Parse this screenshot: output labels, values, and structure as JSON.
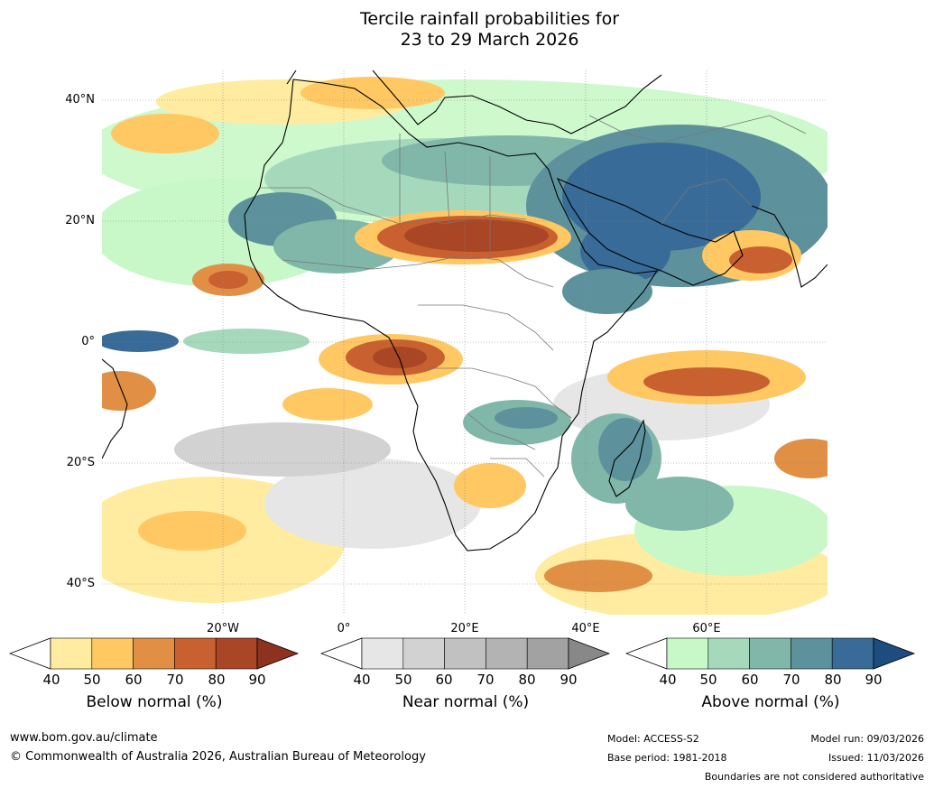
{
  "title": {
    "line1": "Tercile rainfall probabilities for",
    "line2": "23 to 29 March 2026"
  },
  "map": {
    "lat_labels": [
      "40°N",
      "20°N",
      "0°",
      "20°S",
      "40°S"
    ],
    "lon_labels": [
      "20°W",
      "0°",
      "20°E",
      "40°E",
      "60°E"
    ],
    "region": "Africa and surrounding oceans",
    "colors": {
      "below": [
        "#ffeca0",
        "#ffc863",
        "#e08f45",
        "#c8612f",
        "#a94626",
        "#8e3220"
      ],
      "near": [
        "#e6e6e6",
        "#d2d2d2",
        "#c1c1c1",
        "#b3b3b3",
        "#a2a2a2",
        "#888888"
      ],
      "above": [
        "#c8f8c8",
        "#a6d9bc",
        "#80b7a9",
        "#5d929c",
        "#386b98",
        "#1d4d80"
      ]
    }
  },
  "legends": [
    {
      "id": "below",
      "title": "Below normal (%)",
      "ticks": [
        "40",
        "50",
        "60",
        "70",
        "80",
        "90"
      ]
    },
    {
      "id": "near",
      "title": "Near normal (%)",
      "ticks": [
        "40",
        "50",
        "60",
        "70",
        "80",
        "90"
      ]
    },
    {
      "id": "above",
      "title": "Above normal (%)",
      "ticks": [
        "40",
        "50",
        "60",
        "70",
        "80",
        "90"
      ]
    }
  ],
  "footer": {
    "url": "www.bom.gov.au/climate",
    "copyright": "© Commonwealth of Australia 2026, Australian Bureau of Meteorology",
    "model": "Model: ACCESS-S2",
    "base_period": "Base period: 1981-2018",
    "model_run": "Model run: 09/03/2026",
    "issued": "Issued: 11/03/2026",
    "disclaimer": "Boundaries are not considered authoritative"
  }
}
